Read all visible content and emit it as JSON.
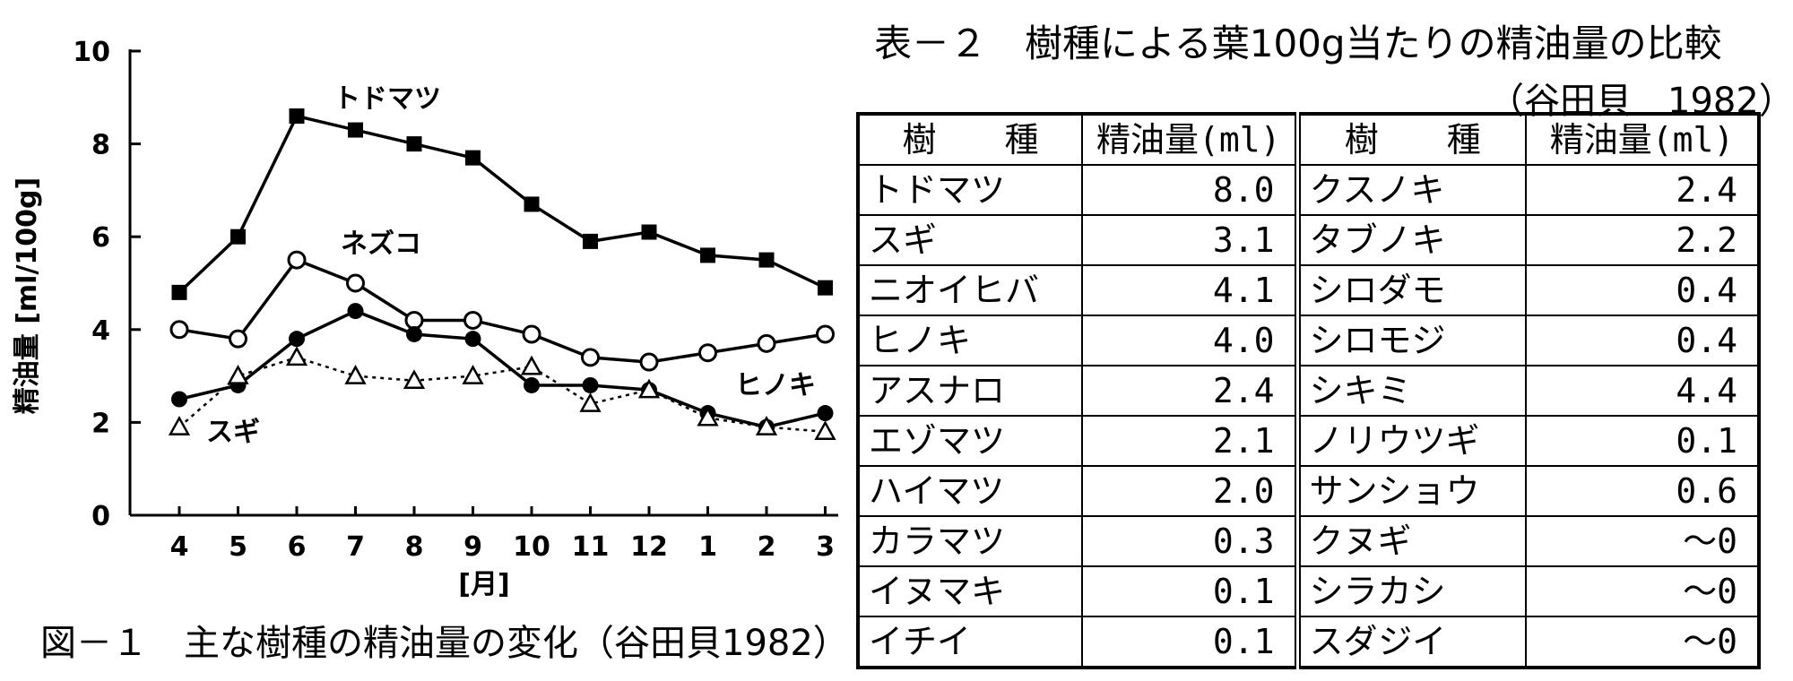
{
  "chart_data": {
    "type": "line",
    "ylabel": "精油量 [ml/100g]",
    "xlabel": "[月]",
    "ylim": [
      0,
      10
    ],
    "yticks": [
      "0",
      "2",
      "4",
      "6",
      "8",
      "10"
    ],
    "categories": [
      "4",
      "5",
      "6",
      "7",
      "8",
      "9",
      "10",
      "11",
      "12",
      "1",
      "2",
      "3"
    ],
    "grid": false,
    "series": [
      {
        "name": "トドマツ",
        "marker": "filled-square",
        "line": "solid",
        "values": [
          4.8,
          6.0,
          8.6,
          8.3,
          8.0,
          7.7,
          6.7,
          5.9,
          6.1,
          5.6,
          5.5,
          4.9
        ]
      },
      {
        "name": "ネズコ",
        "marker": "open-circle",
        "line": "solid",
        "values": [
          4.0,
          3.8,
          5.5,
          5.0,
          4.2,
          4.2,
          3.9,
          3.4,
          3.3,
          3.5,
          3.7,
          3.9
        ]
      },
      {
        "name": "ヒノキ",
        "marker": "filled-circle",
        "line": "solid",
        "values": [
          2.5,
          2.8,
          3.8,
          4.4,
          3.9,
          3.8,
          2.8,
          2.8,
          2.7,
          2.2,
          1.9,
          2.2
        ]
      },
      {
        "name": "スギ",
        "marker": "open-triangle",
        "line": "dotted",
        "values": [
          1.9,
          3.0,
          3.4,
          3.0,
          2.9,
          3.0,
          3.2,
          2.4,
          2.7,
          2.1,
          1.9,
          1.8
        ]
      }
    ]
  },
  "figure_caption": "図－１　主な樹種の精油量の変化（谷田貝1982）",
  "table": {
    "title": "表－２　樹種による葉100g当たりの精油量の比較",
    "source": "（谷田貝　1982）",
    "headers": [
      "樹　　種",
      "精油量(ml)",
      "樹　　種",
      "精油量(ml)"
    ],
    "rows": [
      [
        "トドマツ",
        "8.0",
        "クスノキ",
        "2.4"
      ],
      [
        "スギ",
        "3.1",
        "タブノキ",
        "2.2"
      ],
      [
        "ニオイヒバ",
        "4.1",
        "シロダモ",
        "0.4"
      ],
      [
        "ヒノキ",
        "4.0",
        "シロモジ",
        "0.4"
      ],
      [
        "アスナロ",
        "2.4",
        "シキミ",
        "4.4"
      ],
      [
        "エゾマツ",
        "2.1",
        "ノリウツギ",
        "0.1"
      ],
      [
        "ハイマツ",
        "2.0",
        "サンショウ",
        "0.6"
      ],
      [
        "カラマツ",
        "0.3",
        "クヌギ",
        "～0"
      ],
      [
        "イヌマキ",
        "0.1",
        "シラカシ",
        "～0"
      ],
      [
        "イチイ",
        "0.1",
        "スダジイ",
        "～0"
      ]
    ]
  }
}
